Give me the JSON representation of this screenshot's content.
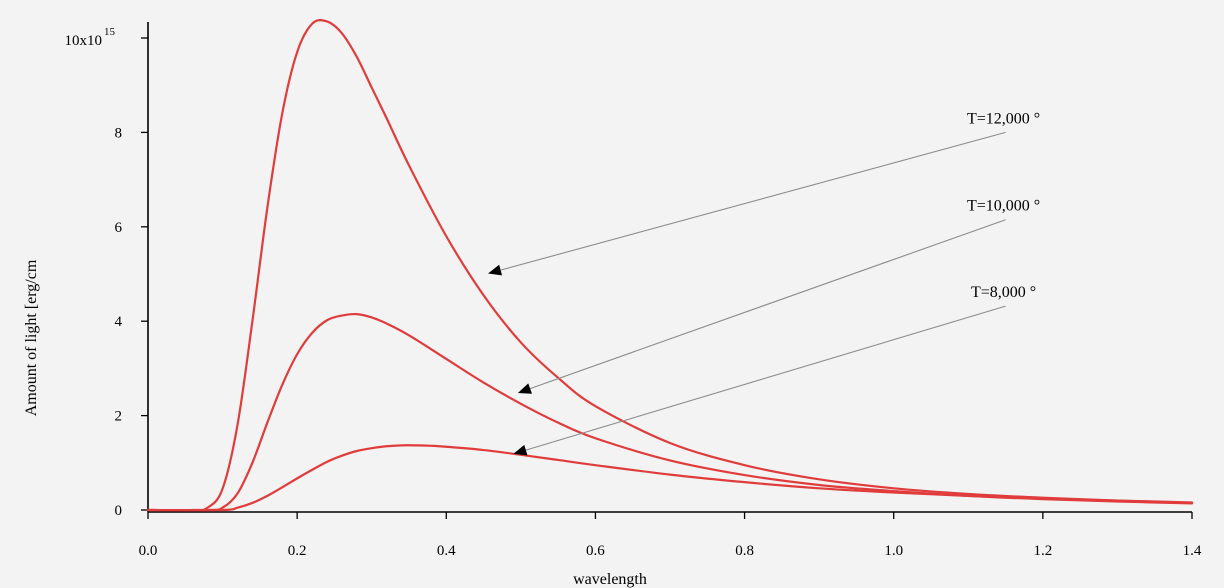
{
  "chart_data": {
    "type": "line",
    "title": "",
    "xlabel": "wavelength",
    "ylabel": "Amount of light [erg/cm",
    "xlim": [
      0.0,
      1.4
    ],
    "ylim": [
      0,
      10
    ],
    "y_multiplier_label": "10x10",
    "y_multiplier_exponent": "15",
    "x_ticks": [
      0.0,
      0.2,
      0.4,
      0.6,
      0.8,
      1.0,
      1.2,
      1.4
    ],
    "x_tick_labels": [
      "0.0",
      "0.2",
      "0.4",
      "0.6",
      "0.8",
      "1.0",
      "1.2",
      "1.4"
    ],
    "y_ticks": [
      0,
      2,
      4,
      6,
      8
    ],
    "y_tick_labels": [
      "0",
      "2",
      "4",
      "6",
      "8"
    ],
    "grid": false,
    "curve_color": "#e03c3c",
    "arrow_color": "#8c8c8c",
    "series": [
      {
        "name": "T=12,000 °",
        "x": [
          0.0,
          0.06,
          0.08,
          0.1,
          0.12,
          0.14,
          0.16,
          0.18,
          0.2,
          0.22,
          0.24,
          0.26,
          0.28,
          0.3,
          0.32,
          0.35,
          0.4,
          0.45,
          0.5,
          0.55,
          0.6,
          0.7,
          0.8,
          0.9,
          1.0,
          1.1,
          1.2,
          1.3,
          1.4
        ],
        "y": [
          0.0,
          0.0,
          0.05,
          0.45,
          1.8,
          4.0,
          6.4,
          8.4,
          9.7,
          10.3,
          10.35,
          10.1,
          9.6,
          8.95,
          8.3,
          7.3,
          5.8,
          4.55,
          3.55,
          2.8,
          2.2,
          1.42,
          0.95,
          0.65,
          0.46,
          0.34,
          0.26,
          0.2,
          0.15
        ]
      },
      {
        "name": "T=10,000 °",
        "x": [
          0.0,
          0.08,
          0.1,
          0.12,
          0.14,
          0.16,
          0.18,
          0.2,
          0.22,
          0.24,
          0.26,
          0.28,
          0.3,
          0.32,
          0.35,
          0.4,
          0.45,
          0.5,
          0.55,
          0.6,
          0.7,
          0.8,
          0.9,
          1.0,
          1.1,
          1.2,
          1.3,
          1.4
        ],
        "y": [
          0.0,
          0.0,
          0.05,
          0.35,
          1.0,
          1.85,
          2.65,
          3.3,
          3.75,
          4.02,
          4.12,
          4.15,
          4.08,
          3.95,
          3.7,
          3.2,
          2.7,
          2.25,
          1.85,
          1.52,
          1.05,
          0.74,
          0.53,
          0.4,
          0.3,
          0.23,
          0.18,
          0.14
        ]
      },
      {
        "name": "T=8,000 °",
        "x": [
          0.0,
          0.1,
          0.12,
          0.14,
          0.16,
          0.18,
          0.2,
          0.22,
          0.24,
          0.26,
          0.28,
          0.3,
          0.32,
          0.34,
          0.36,
          0.38,
          0.4,
          0.45,
          0.5,
          0.55,
          0.6,
          0.7,
          0.8,
          0.9,
          1.0,
          1.1,
          1.2,
          1.3,
          1.4
        ],
        "y": [
          0.0,
          0.0,
          0.05,
          0.15,
          0.3,
          0.48,
          0.67,
          0.85,
          1.02,
          1.15,
          1.25,
          1.31,
          1.35,
          1.37,
          1.37,
          1.36,
          1.34,
          1.27,
          1.17,
          1.06,
          0.95,
          0.75,
          0.59,
          0.46,
          0.37,
          0.3,
          0.24,
          0.2,
          0.16
        ]
      }
    ],
    "annotations": [
      {
        "label": "T=12,000 °",
        "series": 0,
        "arrow_from": [
          1.15,
          8.0
        ],
        "arrow_to": [
          0.456,
          5.01
        ]
      },
      {
        "label": "T=10,000 °",
        "series": 1,
        "arrow_from": [
          1.15,
          6.15
        ],
        "arrow_to": [
          0.496,
          2.48
        ]
      },
      {
        "label": "T=8,000 °",
        "series": 2,
        "arrow_from": [
          1.15,
          4.32
        ],
        "arrow_to": [
          0.49,
          1.19
        ]
      }
    ]
  }
}
